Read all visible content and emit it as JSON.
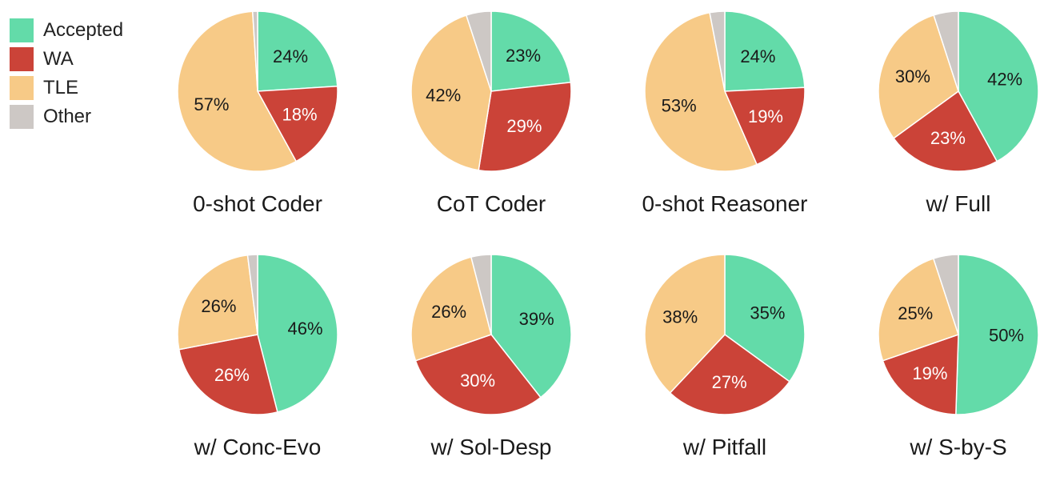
{
  "legend": {
    "items": [
      {
        "key": "accepted",
        "label": "Accepted",
        "color": "#63dba9"
      },
      {
        "key": "wa",
        "label": "WA",
        "color": "#cb4338"
      },
      {
        "key": "tle",
        "label": "TLE",
        "color": "#f7ca87"
      },
      {
        "key": "other",
        "label": "Other",
        "color": "#cdc8c5"
      }
    ]
  },
  "chart_data": [
    {
      "type": "pie",
      "title": "0-shot Coder",
      "categories": [
        "Accepted",
        "WA",
        "TLE",
        "Other"
      ],
      "values": [
        24,
        18,
        57,
        1
      ],
      "labels": [
        "24%",
        "18%",
        "57%",
        ""
      ]
    },
    {
      "type": "pie",
      "title": "CoT Coder",
      "categories": [
        "Accepted",
        "WA",
        "TLE",
        "Other"
      ],
      "values": [
        23,
        29,
        42,
        5
      ],
      "labels": [
        "23%",
        "29%",
        "42%",
        ""
      ]
    },
    {
      "type": "pie",
      "title": "0-shot Reasoner",
      "categories": [
        "Accepted",
        "WA",
        "TLE",
        "Other"
      ],
      "values": [
        24,
        19,
        53,
        3
      ],
      "labels": [
        "24%",
        "19%",
        "53%",
        ""
      ]
    },
    {
      "type": "pie",
      "title": "w/ Full",
      "categories": [
        "Accepted",
        "WA",
        "TLE",
        "Other"
      ],
      "values": [
        42,
        23,
        30,
        5
      ],
      "labels": [
        "42%",
        "23%",
        "30%",
        ""
      ]
    },
    {
      "type": "pie",
      "title": "w/ Conc-Evo",
      "categories": [
        "Accepted",
        "WA",
        "TLE",
        "Other"
      ],
      "values": [
        46,
        26,
        26,
        2
      ],
      "labels": [
        "46%",
        "26%",
        "26%",
        ""
      ]
    },
    {
      "type": "pie",
      "title": "w/ Sol-Desp",
      "categories": [
        "Accepted",
        "WA",
        "TLE",
        "Other"
      ],
      "values": [
        39,
        30,
        26,
        4
      ],
      "labels": [
        "39%",
        "30%",
        "26%",
        ""
      ]
    },
    {
      "type": "pie",
      "title": "w/ Pitfall",
      "categories": [
        "Accepted",
        "WA",
        "TLE",
        "Other"
      ],
      "values": [
        35,
        27,
        38,
        0
      ],
      "labels": [
        "35%",
        "27%",
        "38%",
        ""
      ]
    },
    {
      "type": "pie",
      "title": "w/ S-by-S",
      "categories": [
        "Accepted",
        "WA",
        "TLE",
        "Other"
      ],
      "values": [
        50,
        19,
        25,
        5
      ],
      "labels": [
        "50%",
        "19%",
        "25%",
        ""
      ]
    }
  ]
}
